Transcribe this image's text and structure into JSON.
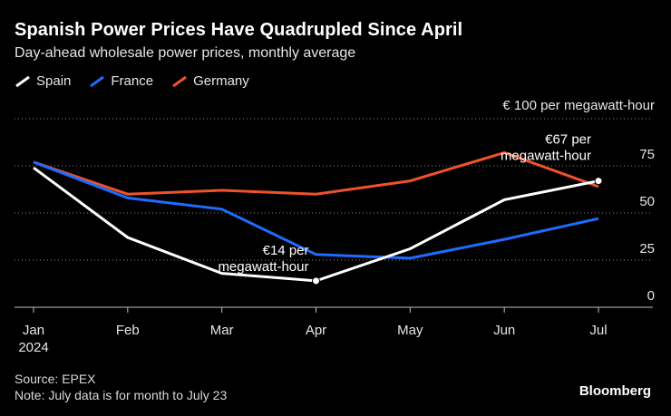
{
  "title": "Spanish Power Prices Have Quadrupled Since April",
  "subtitle": "Day-ahead wholesale power prices, monthly average",
  "source": "Source: EPEX",
  "note": "Note: July data is for month to July 23",
  "brand": "Bloomberg",
  "colors": {
    "background": "#000000",
    "spain": "#ffffff",
    "france": "#1f6bff",
    "germany": "#f0522a",
    "grid": "#8a8a8a",
    "axis": "#bfbfbf"
  },
  "chart_data": {
    "type": "line",
    "title": "Spanish Power Prices Have Quadrupled Since April",
    "categories": [
      "Jan",
      "Feb",
      "Mar",
      "Apr",
      "May",
      "Jun",
      "Jul"
    ],
    "x_sublabels": [
      "2024",
      "",
      "",
      "",
      "",
      "",
      ""
    ],
    "series": [
      {
        "name": "Spain",
        "values": [
          74,
          37,
          18,
          14,
          31,
          57,
          67
        ]
      },
      {
        "name": "France",
        "values": [
          77,
          58,
          52,
          28,
          26,
          36,
          47
        ]
      },
      {
        "name": "Germany",
        "values": [
          77,
          60,
          62,
          60,
          67,
          82,
          64
        ]
      }
    ],
    "ylabel": "€ 100 per megawatt-hour",
    "yticks": [
      0,
      25,
      50,
      75
    ],
    "ylim": [
      0,
      100
    ],
    "grid": true,
    "legend": "top-left",
    "annotations": [
      {
        "series": "Spain",
        "category": "Apr",
        "value": 14,
        "text": [
          "€14 per",
          "megawatt-hour"
        ]
      },
      {
        "series": "Spain",
        "category": "Jul",
        "value": 67,
        "text": [
          "€67 per",
          "megawatt-hour"
        ]
      }
    ]
  }
}
